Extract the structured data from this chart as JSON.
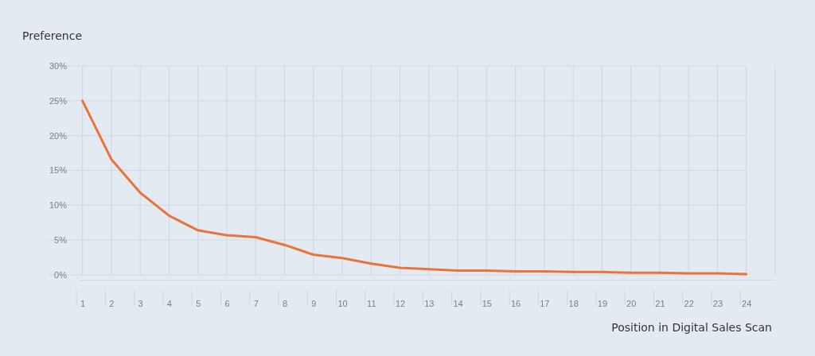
{
  "chart_data": {
    "type": "line",
    "ylabel": "Preference",
    "xlabel": "Position in Digital Sales Scan",
    "x": [
      1,
      2,
      3,
      4,
      5,
      6,
      7,
      8,
      9,
      10,
      11,
      12,
      13,
      14,
      15,
      16,
      17,
      18,
      19,
      20,
      21,
      22,
      23,
      24
    ],
    "series": [
      {
        "color": "#e8743b",
        "values": [
          25,
          16.6,
          11.8,
          8.5,
          6.4,
          5.7,
          5.4,
          4.3,
          2.9,
          2.4,
          1.6,
          1.0,
          0.8,
          0.6,
          0.6,
          0.5,
          0.5,
          0.4,
          0.4,
          0.3,
          0.3,
          0.2,
          0.2,
          0.1
        ]
      }
    ],
    "xlim": [
      0.9,
      25
    ],
    "xticks": [
      1,
      2,
      3,
      4,
      5,
      6,
      7,
      8,
      9,
      10,
      11,
      12,
      13,
      14,
      15,
      16,
      17,
      18,
      19,
      20,
      21,
      22,
      23,
      24
    ],
    "ylim": [
      -0.7,
      30
    ],
    "yticks": [
      {
        "value": 0,
        "label": "0%"
      },
      {
        "value": 5,
        "label": "5%"
      },
      {
        "value": 10,
        "label": "10%"
      },
      {
        "value": 15,
        "label": "15%"
      },
      {
        "value": 20,
        "label": "20%"
      },
      {
        "value": 25,
        "label": "25%"
      },
      {
        "value": 30,
        "label": "30%"
      }
    ],
    "grid": true,
    "marker": "none",
    "line_style": "solid"
  }
}
